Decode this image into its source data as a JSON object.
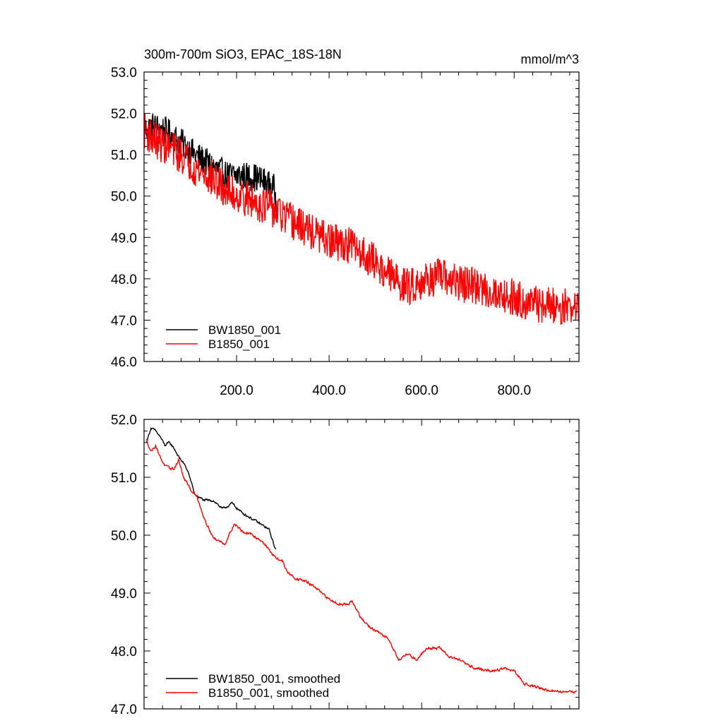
{
  "chart_data": [
    {
      "type": "line",
      "title": "300m-700m SiO3, EPAC_18S-18N",
      "units": "mmol/m^3",
      "xlim": [
        0,
        940
      ],
      "ylim": [
        46.0,
        53.0
      ],
      "x_ticks": [
        200,
        400,
        600,
        800
      ],
      "x_tick_labels": [
        "200.0",
        "400.0",
        "600.0",
        "800.0"
      ],
      "y_ticks": [
        46,
        47,
        48,
        49,
        50,
        51,
        52,
        53
      ],
      "y_tick_labels": [
        "46.0",
        "47.0",
        "48.0",
        "49.0",
        "50.0",
        "51.0",
        "52.0",
        "53.0"
      ],
      "legend_position": "bottom-left",
      "series": [
        {
          "name": "BW1850_001",
          "color": "#000000",
          "noise": 0.35,
          "points": [
            [
              0,
              51.6
            ],
            [
              20,
              51.7
            ],
            [
              50,
              51.55
            ],
            [
              80,
              51.3
            ],
            [
              110,
              51.0
            ],
            [
              150,
              50.7
            ],
            [
              180,
              50.5
            ],
            [
              210,
              50.5
            ],
            [
              240,
              50.45
            ],
            [
              260,
              50.35
            ],
            [
              280,
              50.2
            ],
            [
              285,
              49.9
            ]
          ]
        },
        {
          "name": "B1850_001",
          "color": "#ff0000",
          "noise": 0.45,
          "points": [
            [
              0,
              51.6
            ],
            [
              30,
              51.3
            ],
            [
              60,
              51.15
            ],
            [
              90,
              50.9
            ],
            [
              120,
              50.6
            ],
            [
              150,
              50.4
            ],
            [
              180,
              50.1
            ],
            [
              210,
              50.0
            ],
            [
              240,
              49.85
            ],
            [
              270,
              49.75
            ],
            [
              300,
              49.5
            ],
            [
              350,
              49.2
            ],
            [
              400,
              48.9
            ],
            [
              450,
              48.8
            ],
            [
              500,
              48.4
            ],
            [
              540,
              48.0
            ],
            [
              570,
              47.8
            ],
            [
              600,
              47.95
            ],
            [
              640,
              48.05
            ],
            [
              680,
              47.9
            ],
            [
              720,
              47.8
            ],
            [
              760,
              47.65
            ],
            [
              800,
              47.55
            ],
            [
              840,
              47.4
            ],
            [
              880,
              47.35
            ],
            [
              940,
              47.3
            ]
          ]
        }
      ]
    },
    {
      "type": "line",
      "xlim": [
        0,
        940
      ],
      "ylim": [
        47.0,
        52.0
      ],
      "x_ticks": [
        200,
        400,
        600,
        800
      ],
      "y_ticks": [
        47,
        48,
        49,
        50,
        51,
        52
      ],
      "y_tick_labels": [
        "47.0",
        "48.0",
        "49.0",
        "50.0",
        "51.0",
        "52.0"
      ],
      "legend_position": "bottom-left",
      "series": [
        {
          "name": "BW1850_001, smoothed",
          "color": "#000000",
          "noise": 0.04,
          "points": [
            [
              5,
              51.6
            ],
            [
              15,
              51.85
            ],
            [
              25,
              51.8
            ],
            [
              35,
              51.7
            ],
            [
              45,
              51.55
            ],
            [
              55,
              51.6
            ],
            [
              65,
              51.5
            ],
            [
              75,
              51.35
            ],
            [
              85,
              51.25
            ],
            [
              95,
              51.1
            ],
            [
              110,
              50.7
            ],
            [
              130,
              50.6
            ],
            [
              150,
              50.6
            ],
            [
              170,
              50.45
            ],
            [
              190,
              50.55
            ],
            [
              210,
              50.4
            ],
            [
              230,
              50.3
            ],
            [
              250,
              50.2
            ],
            [
              270,
              50.1
            ],
            [
              280,
              49.85
            ],
            [
              285,
              49.75
            ]
          ]
        },
        {
          "name": "B1850_001, smoothed",
          "color": "#ff0000",
          "noise": 0.045,
          "points": [
            [
              5,
              51.65
            ],
            [
              15,
              51.45
            ],
            [
              25,
              51.55
            ],
            [
              35,
              51.35
            ],
            [
              45,
              51.2
            ],
            [
              55,
              51.15
            ],
            [
              65,
              51.15
            ],
            [
              75,
              51.3
            ],
            [
              85,
              51.0
            ],
            [
              100,
              50.8
            ],
            [
              115,
              50.65
            ],
            [
              130,
              50.3
            ],
            [
              150,
              49.95
            ],
            [
              175,
              49.85
            ],
            [
              195,
              50.2
            ],
            [
              215,
              50.05
            ],
            [
              235,
              50.0
            ],
            [
              255,
              49.9
            ],
            [
              270,
              49.75
            ],
            [
              285,
              49.6
            ],
            [
              300,
              49.55
            ],
            [
              310,
              49.35
            ],
            [
              330,
              49.25
            ],
            [
              350,
              49.2
            ],
            [
              370,
              49.1
            ],
            [
              390,
              48.95
            ],
            [
              410,
              48.85
            ],
            [
              430,
              48.8
            ],
            [
              450,
              48.85
            ],
            [
              470,
              48.55
            ],
            [
              490,
              48.4
            ],
            [
              510,
              48.3
            ],
            [
              530,
              48.2
            ],
            [
              550,
              47.85
            ],
            [
              570,
              47.95
            ],
            [
              590,
              47.85
            ],
            [
              610,
              48.05
            ],
            [
              640,
              48.05
            ],
            [
              660,
              47.9
            ],
            [
              680,
              47.85
            ],
            [
              700,
              47.75
            ],
            [
              720,
              47.7
            ],
            [
              750,
              47.65
            ],
            [
              780,
              47.7
            ],
            [
              800,
              47.65
            ],
            [
              820,
              47.45
            ],
            [
              840,
              47.4
            ],
            [
              860,
              47.35
            ],
            [
              880,
              47.3
            ],
            [
              900,
              47.3
            ],
            [
              935,
              47.3
            ]
          ]
        }
      ]
    }
  ]
}
